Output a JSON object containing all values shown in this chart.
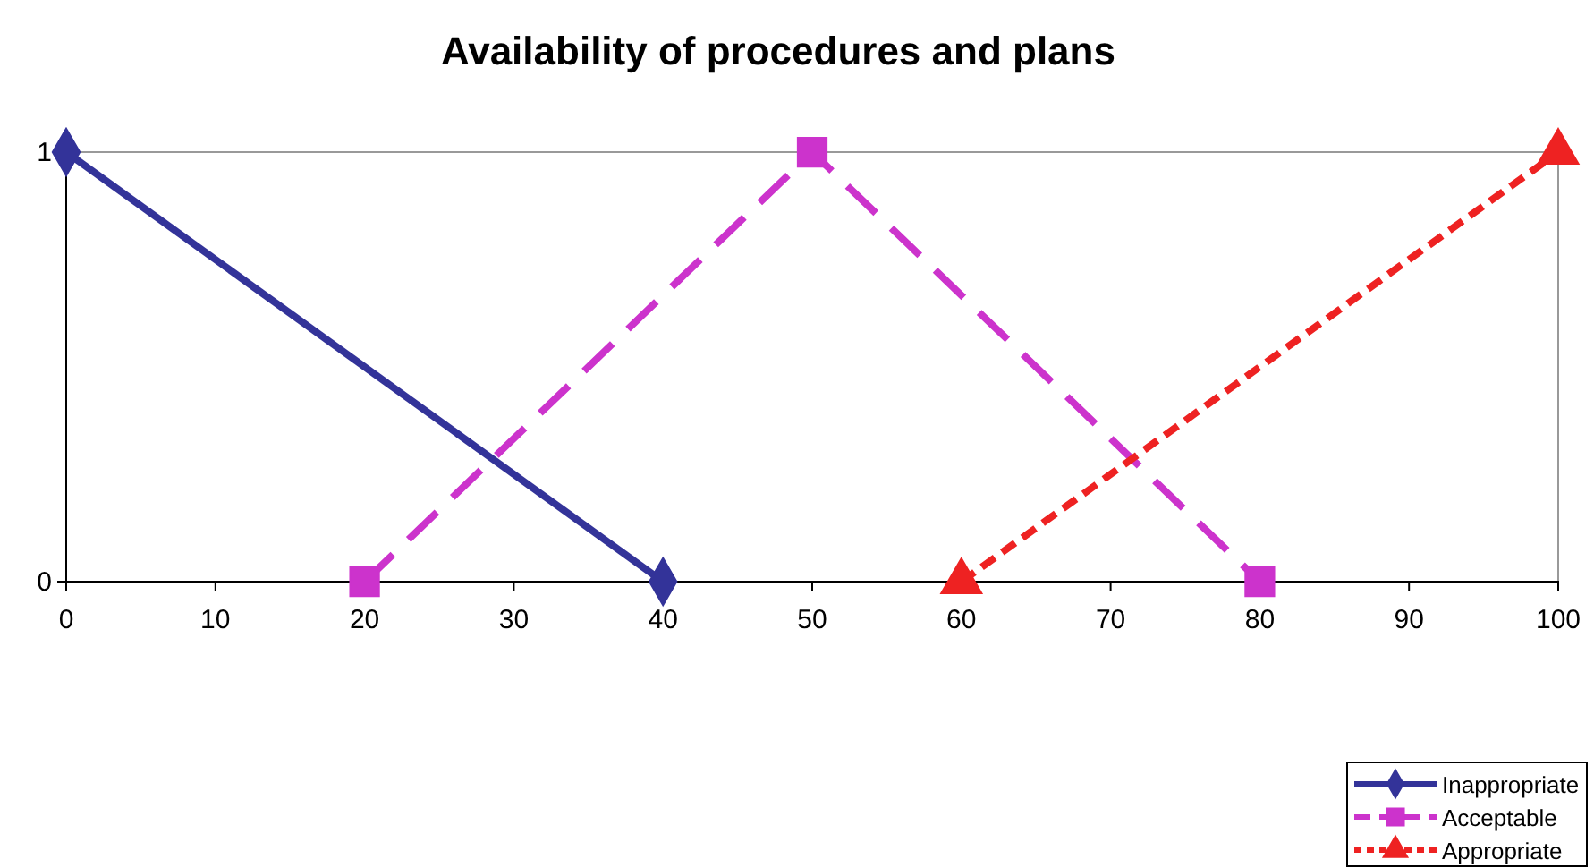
{
  "chart_data": {
    "type": "line",
    "title": "Availability of procedures and plans",
    "xlim": [
      0,
      100
    ],
    "xticks": [
      0,
      10,
      20,
      30,
      40,
      50,
      60,
      70,
      80,
      90,
      100
    ],
    "ylim": [
      0,
      1
    ],
    "yticks": [
      0,
      1
    ],
    "legend": "bottom right",
    "grid": false,
    "series": [
      {
        "name": "Inappropriate",
        "color": "#333399",
        "x": [
          0,
          40
        ],
        "values": [
          1,
          0
        ],
        "marker": "diamond",
        "line_style": "solid"
      },
      {
        "name": "Acceptable",
        "color": "#cc33cc",
        "x": [
          20,
          50,
          80
        ],
        "values": [
          0,
          1,
          0
        ],
        "marker": "square",
        "line_style": "dashed"
      },
      {
        "name": "Appropriate",
        "color": "#ee2222",
        "x": [
          60,
          100
        ],
        "values": [
          0,
          1
        ],
        "marker": "triangle",
        "line_style": "dotted"
      }
    ]
  }
}
